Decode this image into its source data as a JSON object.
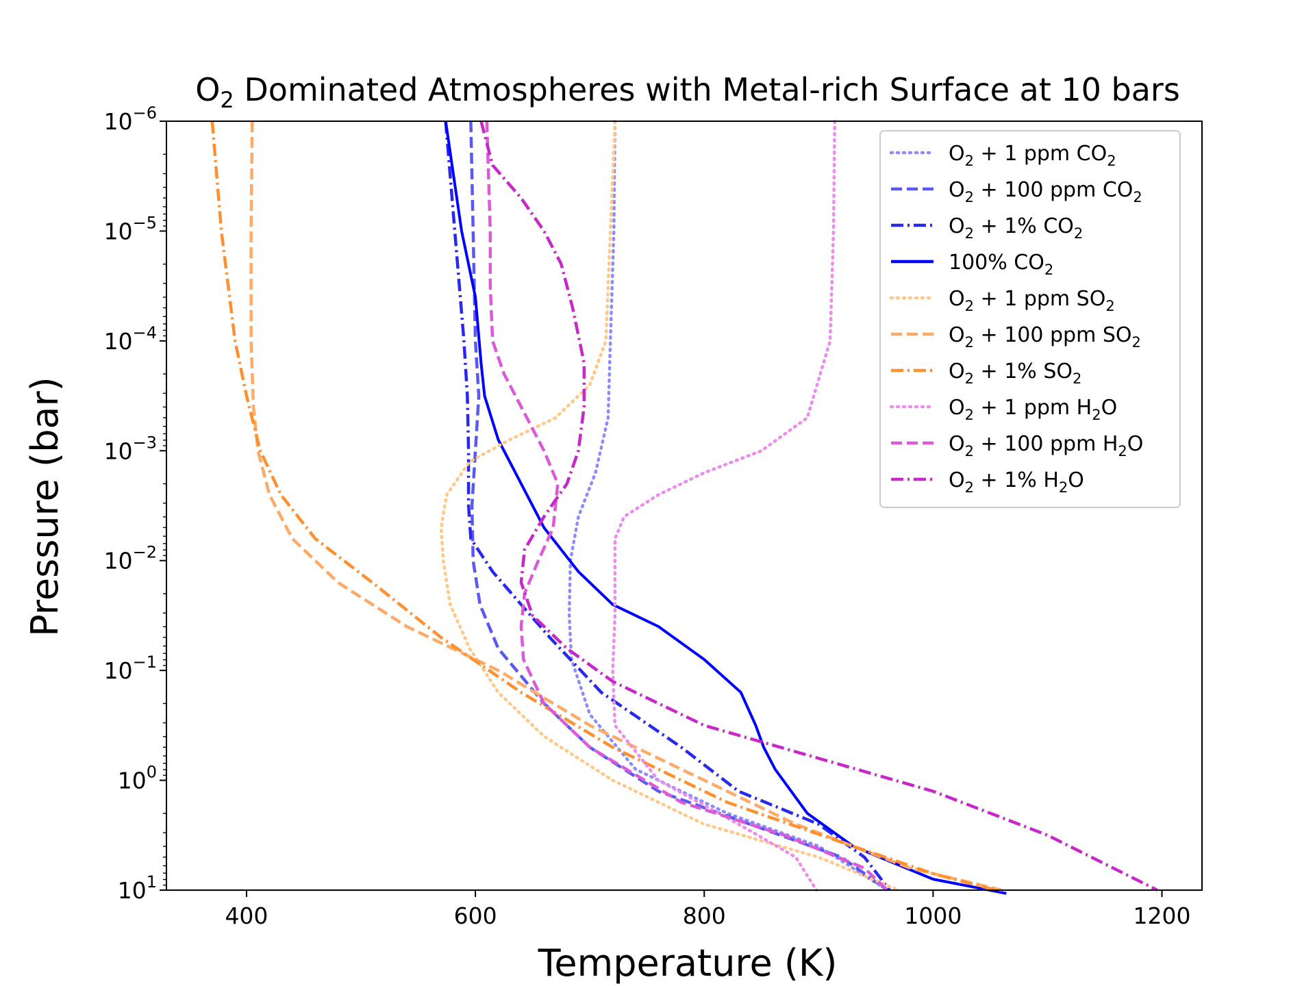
{
  "chart_data": {
    "type": "line",
    "title": "O₂ Dominated Atmospheres with Metal-rich Surface at 10 bars",
    "xlabel": "Temperature (K)",
    "ylabel": "Pressure (bar)",
    "xlim": [
      330,
      1235
    ],
    "ylim_log10": [
      -6,
      1
    ],
    "y_scale": "log",
    "y_inverted": true,
    "xticks": [
      {
        "value": 400,
        "label": "400"
      },
      {
        "value": 600,
        "label": "600"
      },
      {
        "value": 800,
        "label": "800"
      },
      {
        "value": 1000,
        "label": "1000"
      },
      {
        "value": 1200,
        "label": "1200"
      }
    ],
    "yticks": [
      {
        "exp": -6,
        "base": "10",
        "sup": "−6"
      },
      {
        "exp": -5,
        "base": "10",
        "sup": "−5"
      },
      {
        "exp": -4,
        "base": "10",
        "sup": "−4"
      },
      {
        "exp": -3,
        "base": "10",
        "sup": "−3"
      },
      {
        "exp": -2,
        "base": "10",
        "sup": "−2"
      },
      {
        "exp": -1,
        "base": "10",
        "sup": "−1"
      },
      {
        "exp": 0,
        "base": "10",
        "sup": "0"
      },
      {
        "exp": 1,
        "base": "10",
        "sup": "1"
      }
    ],
    "grid": false,
    "legend_position": "top-right",
    "series": [
      {
        "name": "O₂ + 1 ppm CO₂",
        "color": "#8c8cff",
        "style": "dotted",
        "points": [
          [
            722,
            -6
          ],
          [
            721,
            -5
          ],
          [
            718,
            -4
          ],
          [
            716,
            -3.3
          ],
          [
            705,
            -2.8
          ],
          [
            690,
            -2.4
          ],
          [
            683,
            -2.0
          ],
          [
            682,
            -1.5
          ],
          [
            684,
            -1.1
          ],
          [
            700,
            -0.6
          ],
          [
            740,
            -0.1
          ],
          [
            820,
            0.3
          ],
          [
            900,
            0.6
          ],
          [
            960,
            1.0
          ]
        ]
      },
      {
        "name": "O₂ + 100 ppm CO₂",
        "color": "#5a5af0",
        "style": "dashed",
        "points": [
          [
            596,
            -6
          ],
          [
            598,
            -5
          ],
          [
            600,
            -4
          ],
          [
            603,
            -3.5
          ],
          [
            600,
            -3
          ],
          [
            597,
            -2.5
          ],
          [
            598,
            -2
          ],
          [
            604,
            -1.6
          ],
          [
            620,
            -1.2
          ],
          [
            660,
            -0.7
          ],
          [
            700,
            -0.3
          ],
          [
            760,
            0.1
          ],
          [
            840,
            0.4
          ],
          [
            920,
            0.7
          ],
          [
            960,
            1.0
          ]
        ]
      },
      {
        "name": "O₂ + 1% CO₂",
        "color": "#2828ee",
        "style": "dashdot",
        "points": [
          [
            574,
            -6
          ],
          [
            582,
            -5
          ],
          [
            590,
            -4
          ],
          [
            593,
            -3.5
          ],
          [
            594,
            -3
          ],
          [
            594,
            -2.5
          ],
          [
            596,
            -2.2
          ],
          [
            615,
            -1.9
          ],
          [
            640,
            -1.6
          ],
          [
            665,
            -1.3
          ],
          [
            710,
            -0.8
          ],
          [
            780,
            -0.3
          ],
          [
            830,
            0.1
          ],
          [
            900,
            0.4
          ],
          [
            940,
            0.7
          ],
          [
            962,
            1.0
          ]
        ]
      },
      {
        "name": "100% CO₂",
        "color": "#0000ff",
        "style": "solid",
        "points": [
          [
            574,
            -6
          ],
          [
            588,
            -5
          ],
          [
            600,
            -4.4
          ],
          [
            605,
            -3.8
          ],
          [
            608,
            -3.5
          ],
          [
            620,
            -3.1
          ],
          [
            640,
            -2.7
          ],
          [
            660,
            -2.3
          ],
          [
            690,
            -1.9
          ],
          [
            720,
            -1.6
          ],
          [
            760,
            -1.4
          ],
          [
            800,
            -1.1
          ],
          [
            832,
            -0.8
          ],
          [
            845,
            -0.5
          ],
          [
            852,
            -0.3
          ],
          [
            862,
            -0.1
          ],
          [
            890,
            0.3
          ],
          [
            930,
            0.6
          ],
          [
            1000,
            0.9
          ],
          [
            1064,
            1.03
          ]
        ]
      },
      {
        "name": "O₂ + 1 ppm SO₂",
        "color": "#ffc888",
        "style": "dotted",
        "points": [
          [
            722,
            -6
          ],
          [
            718,
            -5
          ],
          [
            714,
            -4
          ],
          [
            700,
            -3.6
          ],
          [
            670,
            -3.3
          ],
          [
            630,
            -3.1
          ],
          [
            595,
            -2.9
          ],
          [
            575,
            -2.6
          ],
          [
            570,
            -2.3
          ],
          [
            572,
            -2.0
          ],
          [
            578,
            -1.6
          ],
          [
            595,
            -1.2
          ],
          [
            620,
            -0.8
          ],
          [
            660,
            -0.4
          ],
          [
            720,
            0.0
          ],
          [
            800,
            0.4
          ],
          [
            900,
            0.7
          ],
          [
            970,
            1.0
          ]
        ]
      },
      {
        "name": "O₂ + 100 ppm SO₂",
        "color": "#ffaa66",
        "style": "dashed",
        "points": [
          [
            405,
            -6
          ],
          [
            404,
            -5
          ],
          [
            404,
            -4
          ],
          [
            406,
            -3.4
          ],
          [
            410,
            -3.0
          ],
          [
            420,
            -2.6
          ],
          [
            440,
            -2.2
          ],
          [
            480,
            -1.8
          ],
          [
            540,
            -1.4
          ],
          [
            620,
            -1.0
          ],
          [
            700,
            -0.5
          ],
          [
            780,
            -0.1
          ],
          [
            880,
            0.4
          ],
          [
            980,
            0.8
          ],
          [
            1060,
            1.0
          ]
        ]
      },
      {
        "name": "O₂ + 1% SO₂",
        "color": "#ff9030",
        "style": "dashdot",
        "points": [
          [
            370,
            -6
          ],
          [
            378,
            -5
          ],
          [
            390,
            -4
          ],
          [
            400,
            -3.5
          ],
          [
            412,
            -3.0
          ],
          [
            430,
            -2.6
          ],
          [
            460,
            -2.2
          ],
          [
            510,
            -1.8
          ],
          [
            570,
            -1.3
          ],
          [
            640,
            -0.8
          ],
          [
            720,
            -0.3
          ],
          [
            820,
            0.2
          ],
          [
            930,
            0.6
          ],
          [
            1000,
            0.85
          ],
          [
            1055,
            1.0
          ]
        ]
      },
      {
        "name": "O₂ + 1 ppm H₂O",
        "color": "#ec8cec",
        "style": "dotted",
        "points": [
          [
            914,
            -6
          ],
          [
            913,
            -5
          ],
          [
            910,
            -4
          ],
          [
            890,
            -3.3
          ],
          [
            850,
            -3.0
          ],
          [
            800,
            -2.8
          ],
          [
            760,
            -2.6
          ],
          [
            730,
            -2.4
          ],
          [
            722,
            -2.2
          ],
          [
            722,
            -1.5
          ],
          [
            720,
            -1.0
          ],
          [
            722,
            -0.5
          ],
          [
            760,
            0.0
          ],
          [
            830,
            0.4
          ],
          [
            880,
            0.7
          ],
          [
            898,
            1.0
          ]
        ]
      },
      {
        "name": "O₂ + 100 ppm H₂O",
        "color": "#dc5ad8",
        "style": "dashed",
        "points": [
          [
            610,
            -6
          ],
          [
            613,
            -5
          ],
          [
            613,
            -4.5
          ],
          [
            615,
            -4
          ],
          [
            625,
            -3.7
          ],
          [
            640,
            -3.4
          ],
          [
            660,
            -3.0
          ],
          [
            672,
            -2.7
          ],
          [
            668,
            -2.3
          ],
          [
            655,
            -2.0
          ],
          [
            643,
            -1.7
          ],
          [
            640,
            -1.4
          ],
          [
            642,
            -1.1
          ],
          [
            660,
            -0.7
          ],
          [
            700,
            -0.3
          ],
          [
            780,
            0.2
          ],
          [
            870,
            0.5
          ],
          [
            940,
            0.8
          ],
          [
            960,
            1.0
          ]
        ]
      },
      {
        "name": "O₂ + 1% H₂O",
        "color": "#c828c8",
        "style": "dashdot",
        "points": [
          [
            605,
            -6
          ],
          [
            615,
            -5.6
          ],
          [
            640,
            -5.3
          ],
          [
            660,
            -5.0
          ],
          [
            675,
            -4.7
          ],
          [
            685,
            -4.3
          ],
          [
            695,
            -3.8
          ],
          [
            695,
            -3.4
          ],
          [
            690,
            -3.0
          ],
          [
            680,
            -2.7
          ],
          [
            660,
            -2.4
          ],
          [
            643,
            -2.1
          ],
          [
            640,
            -1.8
          ],
          [
            650,
            -1.5
          ],
          [
            680,
            -1.2
          ],
          [
            720,
            -0.9
          ],
          [
            800,
            -0.5
          ],
          [
            900,
            -0.2
          ],
          [
            1000,
            0.1
          ],
          [
            1100,
            0.5
          ],
          [
            1196,
            1.0
          ]
        ]
      }
    ]
  },
  "legend": [
    {
      "base": "O",
      "sub1": "2",
      "mid": " + 1 ppm CO",
      "sub2": "2"
    },
    {
      "base": "O",
      "sub1": "2",
      "mid": " + 100 ppm CO",
      "sub2": "2"
    },
    {
      "base": "O",
      "sub1": "2",
      "mid": " + 1% CO",
      "sub2": "2"
    },
    {
      "base": "",
      "sub1": "",
      "mid": "100% CO",
      "sub2": "2"
    },
    {
      "base": "O",
      "sub1": "2",
      "mid": " + 1 ppm SO",
      "sub2": "2"
    },
    {
      "base": "O",
      "sub1": "2",
      "mid": " + 100 ppm SO",
      "sub2": "2"
    },
    {
      "base": "O",
      "sub1": "2",
      "mid": " + 1% SO",
      "sub2": "2"
    },
    {
      "base": "O",
      "sub1": "2",
      "mid": " + 1 ppm H",
      "sub2": "2",
      "tail": "O"
    },
    {
      "base": "O",
      "sub1": "2",
      "mid": " + 100 ppm H",
      "sub2": "2",
      "tail": "O"
    },
    {
      "base": "O",
      "sub1": "2",
      "mid": " + 1% H",
      "sub2": "2",
      "tail": "O"
    }
  ],
  "title_parts": {
    "base": "O",
    "sub": "2",
    "rest": " Dominated Atmospheres with Metal-rich Surface at 10 bars"
  }
}
